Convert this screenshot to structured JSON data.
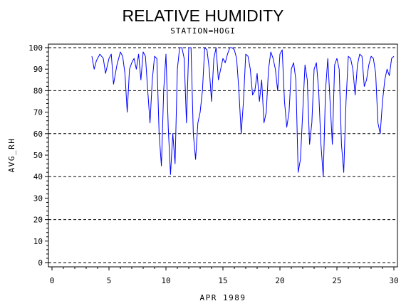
{
  "chart_data": {
    "type": "line",
    "title": "RELATIVE HUMIDITY",
    "subtitle": "STATION=HOGI",
    "xlabel": "APR 1989",
    "ylabel": "AVG_RH",
    "xlim": [
      0,
      30
    ],
    "ylim": [
      0,
      100
    ],
    "x_ticks": [
      0,
      5,
      10,
      15,
      20,
      25,
      30
    ],
    "y_ticks": [
      0,
      10,
      20,
      30,
      40,
      50,
      60,
      70,
      80,
      90,
      100
    ],
    "dashed_gridlines_y": [
      0,
      20,
      40,
      60,
      80,
      100
    ],
    "line_color": "#0000ff",
    "series": [
      {
        "x": [
          3.5,
          3.7,
          3.9,
          4.2,
          4.5,
          4.7,
          5.0,
          5.2,
          5.4,
          5.7,
          6.0,
          6.2,
          6.4,
          6.6,
          6.8,
          7.0,
          7.2,
          7.4,
          7.6,
          7.8,
          8.0,
          8.2,
          8.4,
          8.6,
          8.8,
          9.0,
          9.2,
          9.4,
          9.6,
          9.8,
          10.0,
          10.2,
          10.4,
          10.6,
          10.8,
          11.0,
          11.2,
          11.4,
          11.6,
          11.8,
          12.0,
          12.2,
          12.4,
          12.6,
          12.8,
          13.0,
          13.2,
          13.4,
          13.6,
          13.8,
          14.0,
          14.2,
          14.4,
          14.6,
          14.8,
          15.0,
          15.2,
          15.4,
          15.6,
          15.8,
          16.0,
          16.2,
          16.4,
          16.6,
          16.8,
          17.0,
          17.2,
          17.4,
          17.6,
          17.8,
          18.0,
          18.2,
          18.4,
          18.6,
          18.8,
          19.0,
          19.2,
          19.4,
          19.6,
          19.8,
          20.0,
          20.2,
          20.4,
          20.6,
          20.8,
          21.0,
          21.2,
          21.4,
          21.6,
          21.8,
          22.0,
          22.2,
          22.4,
          22.6,
          22.8,
          23.0,
          23.2,
          23.4,
          23.6,
          23.8,
          24.0,
          24.2,
          24.4,
          24.6,
          24.8,
          25.0,
          25.2,
          25.4,
          25.6,
          25.8,
          26.0,
          26.2,
          26.4,
          26.6,
          26.8,
          27.0,
          27.2,
          27.4,
          27.6,
          27.8,
          28.0,
          28.2,
          28.4,
          28.6,
          28.8,
          29.0,
          29.2,
          29.4,
          29.6,
          29.8,
          30.0
        ],
        "y": [
          96,
          90,
          94,
          97,
          95,
          88,
          95,
          97,
          83,
          92,
          98,
          96,
          88,
          70,
          90,
          93,
          95,
          90,
          97,
          85,
          98,
          96,
          80,
          65,
          85,
          96,
          95,
          60,
          45,
          80,
          97,
          63,
          41,
          60,
          46,
          90,
          100,
          100,
          95,
          65,
          100,
          100,
          60,
          48,
          65,
          70,
          80,
          100,
          99,
          90,
          75,
          95,
          100,
          85,
          90,
          95,
          93,
          97,
          100,
          100,
          99,
          95,
          80,
          60,
          75,
          97,
          96,
          90,
          78,
          80,
          88,
          75,
          85,
          65,
          70,
          90,
          98,
          95,
          90,
          80,
          97,
          99,
          75,
          63,
          70,
          90,
          93,
          85,
          42,
          48,
          70,
          92,
          85,
          55,
          65,
          90,
          93,
          80,
          55,
          40,
          80,
          95,
          75,
          55,
          92,
          95,
          90,
          55,
          42,
          75,
          96,
          95,
          90,
          78,
          92,
          97,
          96,
          82,
          85,
          92,
          96,
          95,
          88,
          65,
          60,
          75,
          85,
          90,
          87,
          95,
          96
        ]
      }
    ]
  }
}
